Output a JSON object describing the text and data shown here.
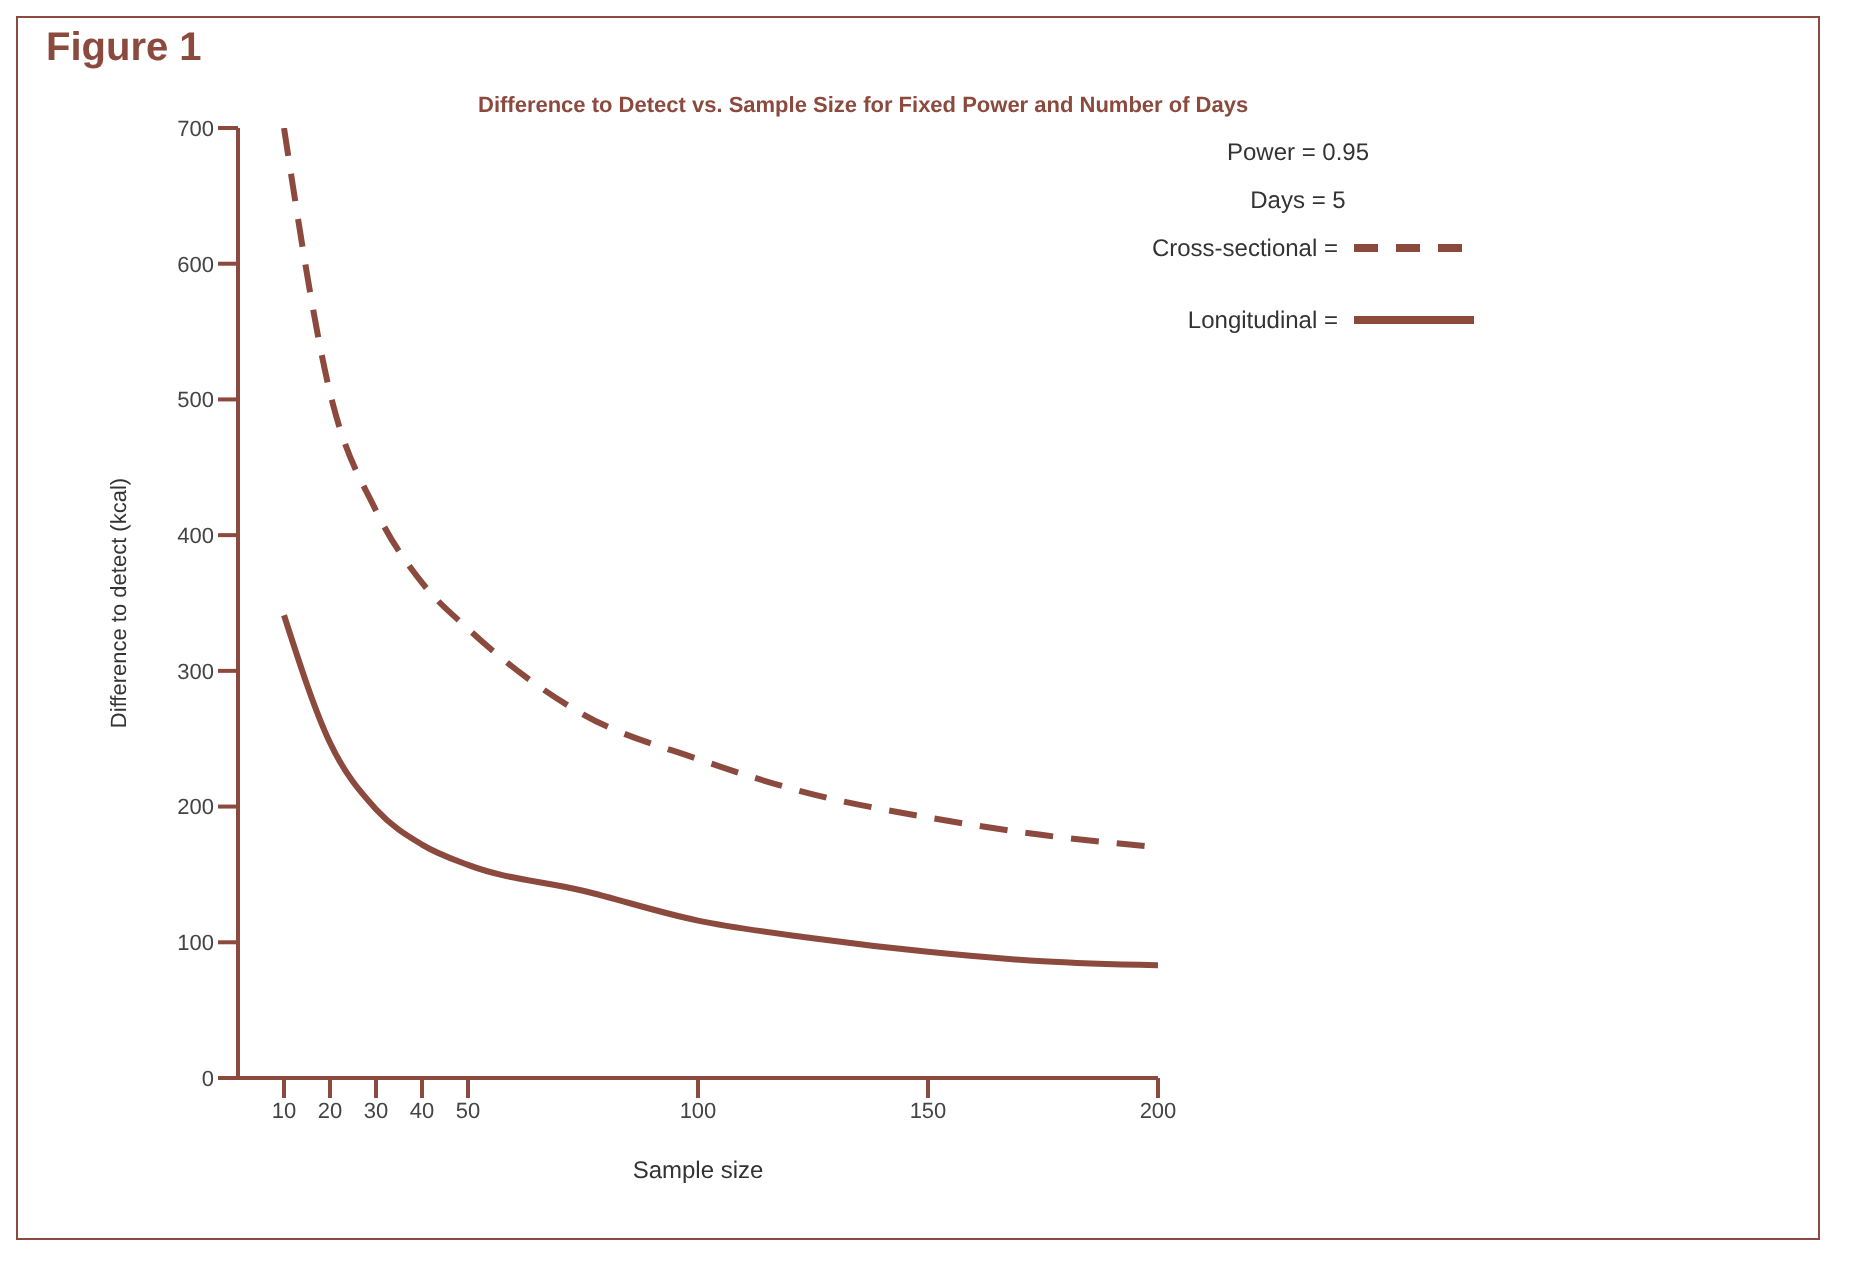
{
  "chart_data": {
    "type": "line",
    "title": "Figure 1",
    "subtitle": "Difference to Detect vs. Sample Size for Fixed Power and Number of Days",
    "xlabel": "Sample size",
    "ylabel": "Difference to detect (kcal)",
    "annotations": [
      "Power = 0.95",
      "Days = 5"
    ],
    "x": [
      10,
      20,
      30,
      40,
      50,
      75,
      100,
      125,
      150,
      175,
      200
    ],
    "series": [
      {
        "name": "Cross-sectional =",
        "color": "#8c4a3e",
        "line_style": "dashed",
        "values": [
          700,
          505,
          418,
          365,
          331,
          268,
          235,
          209,
          192,
          179,
          170
        ]
      },
      {
        "name": "Longitudinal =",
        "color": "#8c4a3e",
        "line_style": "solid",
        "values": [
          341,
          247,
          198,
          172,
          157,
          138,
          116,
          103,
          93,
          86,
          83
        ]
      }
    ],
    "xlim": [
      0,
      200
    ],
    "xticks": [
      10,
      20,
      30,
      40,
      50,
      100,
      150,
      200
    ],
    "ylim": [
      0,
      700
    ],
    "yticks": [
      0,
      100,
      200,
      300,
      400,
      500,
      600,
      700
    ],
    "grid": false,
    "legend": "top right",
    "marker": "none"
  }
}
